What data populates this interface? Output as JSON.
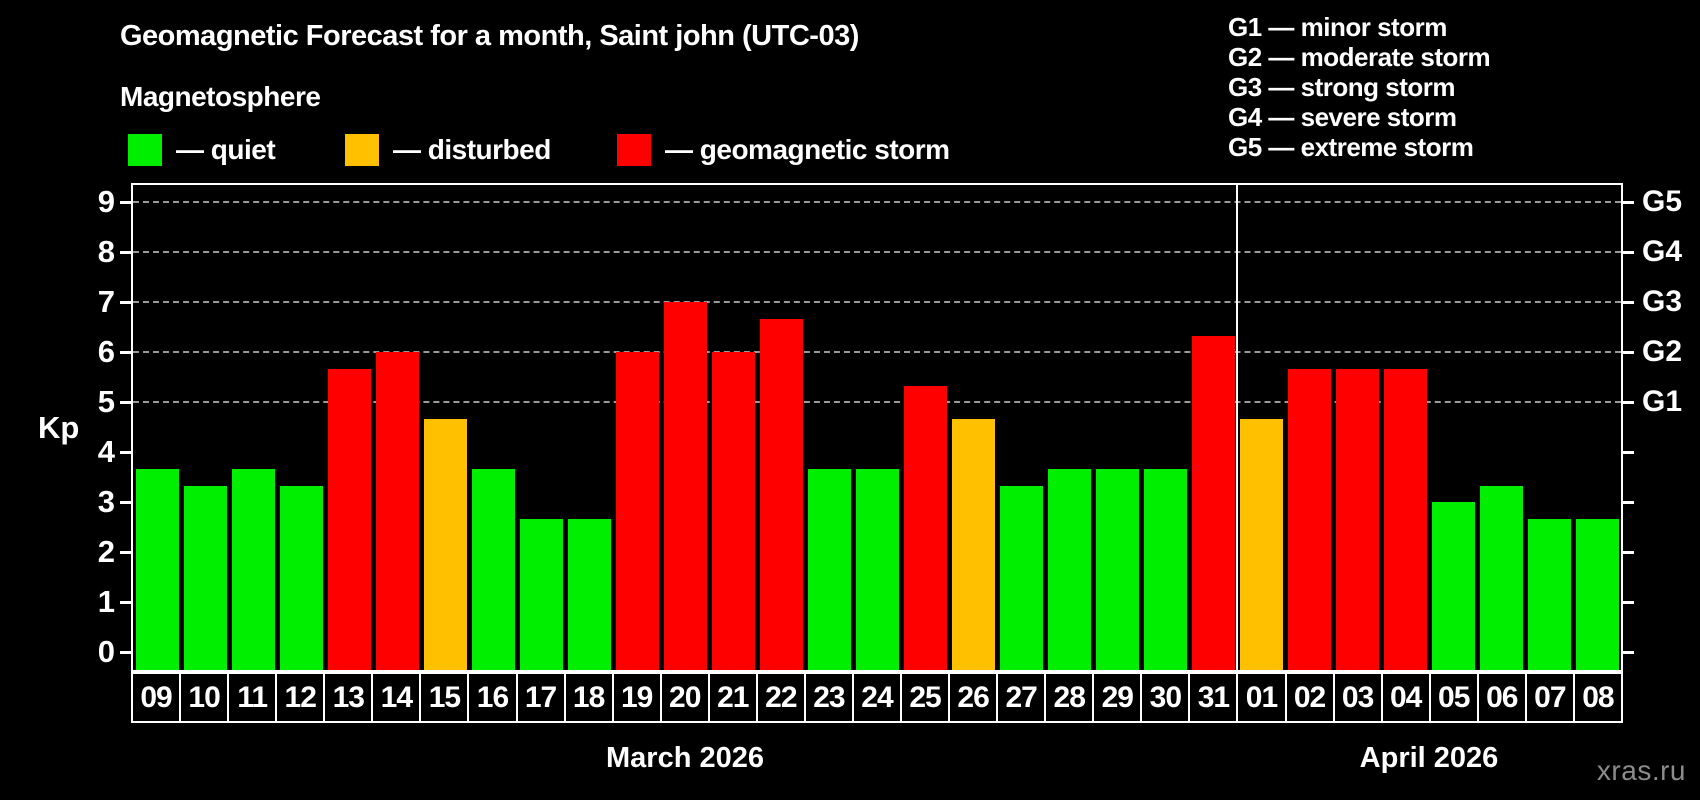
{
  "title": "Geomagnetic Forecast for a month, Saint john (UTC-03)",
  "subtitle": "Magnetosphere",
  "legend": [
    {
      "key": "quiet",
      "label": "— quiet"
    },
    {
      "key": "disturbed",
      "label": "— disturbed"
    },
    {
      "key": "storm",
      "label": "— geomagnetic storm"
    }
  ],
  "g_legend": [
    "G1 — minor storm",
    "G2 — moderate storm",
    "G3 — strong storm",
    "G4 — severe storm",
    "G5 — extreme storm"
  ],
  "watermark": "xras.ru",
  "colors": {
    "quiet": "#00ee00",
    "disturbed": "#ffc000",
    "storm": "#ff0000",
    "grid": "#9a9a9a",
    "axis": "#ffffff",
    "watermark": "#8c8c8c"
  },
  "chart_data": {
    "type": "bar",
    "title": "Geomagnetic Forecast for a month, Saint john (UTC-03)",
    "ylabel": "Kp",
    "xlabel": "",
    "ylim": [
      -0.4,
      9.4
    ],
    "yticks": [
      0,
      1,
      2,
      3,
      4,
      5,
      6,
      7,
      8,
      9
    ],
    "gridlines": [
      5,
      6,
      7,
      8,
      9
    ],
    "grid": "dashed, only at storm levels G1-G5",
    "legend_position": "top",
    "g_levels": [
      {
        "kp": 5,
        "label": "G1"
      },
      {
        "kp": 6,
        "label": "G2"
      },
      {
        "kp": 7,
        "label": "G3"
      },
      {
        "kp": 8,
        "label": "G4"
      },
      {
        "kp": 9,
        "label": "G5"
      }
    ],
    "months": [
      {
        "label": "March 2026",
        "days": 23
      },
      {
        "label": "April 2026",
        "days": 8
      }
    ],
    "categories": [
      "09",
      "10",
      "11",
      "12",
      "13",
      "14",
      "15",
      "16",
      "17",
      "18",
      "19",
      "20",
      "21",
      "22",
      "23",
      "24",
      "25",
      "26",
      "27",
      "28",
      "29",
      "30",
      "31",
      "01",
      "02",
      "03",
      "04",
      "05",
      "06",
      "07",
      "08"
    ],
    "values": [
      3.67,
      3.33,
      3.67,
      3.33,
      5.67,
      6,
      4.67,
      3.67,
      2.67,
      2.67,
      6,
      7,
      6,
      6.67,
      3.67,
      3.67,
      5.33,
      4.67,
      3.33,
      3.67,
      3.67,
      3.67,
      6.33,
      4.67,
      5.67,
      5.67,
      5.67,
      3,
      3.33,
      2.67,
      2.67
    ],
    "status": [
      "quiet",
      "quiet",
      "quiet",
      "quiet",
      "storm",
      "storm",
      "disturbed",
      "quiet",
      "quiet",
      "quiet",
      "storm",
      "storm",
      "storm",
      "storm",
      "quiet",
      "quiet",
      "storm",
      "disturbed",
      "quiet",
      "quiet",
      "quiet",
      "quiet",
      "storm",
      "disturbed",
      "storm",
      "storm",
      "storm",
      "quiet",
      "quiet",
      "quiet",
      "quiet"
    ]
  }
}
